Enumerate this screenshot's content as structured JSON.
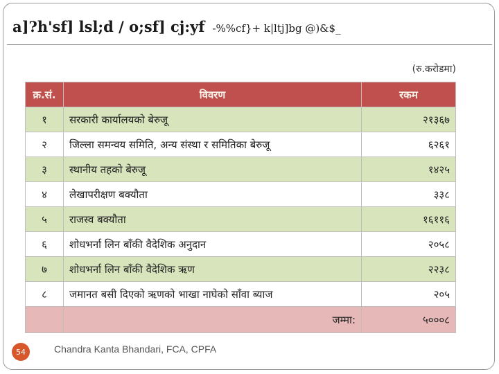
{
  "slide": {
    "title": "a]?h'sf] lsl;d / o;sf] cj:yf",
    "subtitle": "-%%cf}+ k|ltj]bg @)&$_",
    "unit_note": "(रु.करोडमा)",
    "page_number": "54",
    "footer": "Chandra Kanta Bhandari, FCA, CPFA"
  },
  "table": {
    "headers": [
      "क्र.सं.",
      "विवरण",
      "रकम"
    ],
    "rows": [
      {
        "no": "१",
        "desc": "सरकारी कार्यालयको बेरुजू",
        "amount": "२१३६७"
      },
      {
        "no": "२",
        "desc": "जिल्ला समन्वय समिति, अन्य संस्था र समितिका बेरुजू",
        "amount": "६२६१"
      },
      {
        "no": "३",
        "desc": "स्थानीय तहको बेरुजू",
        "amount": "१४२५"
      },
      {
        "no": "४",
        "desc": "लेखापरीक्षण बक्यौता",
        "amount": "३३८"
      },
      {
        "no": "५",
        "desc": "राजस्व बक्यौता",
        "amount": "१६११६"
      },
      {
        "no": "६",
        "desc": "शोधभर्ना लिन बाँकी वैदेशिक अनुदान",
        "amount": "२०५८"
      },
      {
        "no": "७",
        "desc": "शोधभर्ना लिन बाँकी वैदेशिक ऋण",
        "amount": "२२३८"
      },
      {
        "no": "८",
        "desc": "जमानत बसी दिएको ऋणको भाखा नाघेको साँवा ब्याज",
        "amount": "२०५"
      }
    ],
    "total_label": "जम्मा:",
    "total_amount": "५०००८"
  }
}
